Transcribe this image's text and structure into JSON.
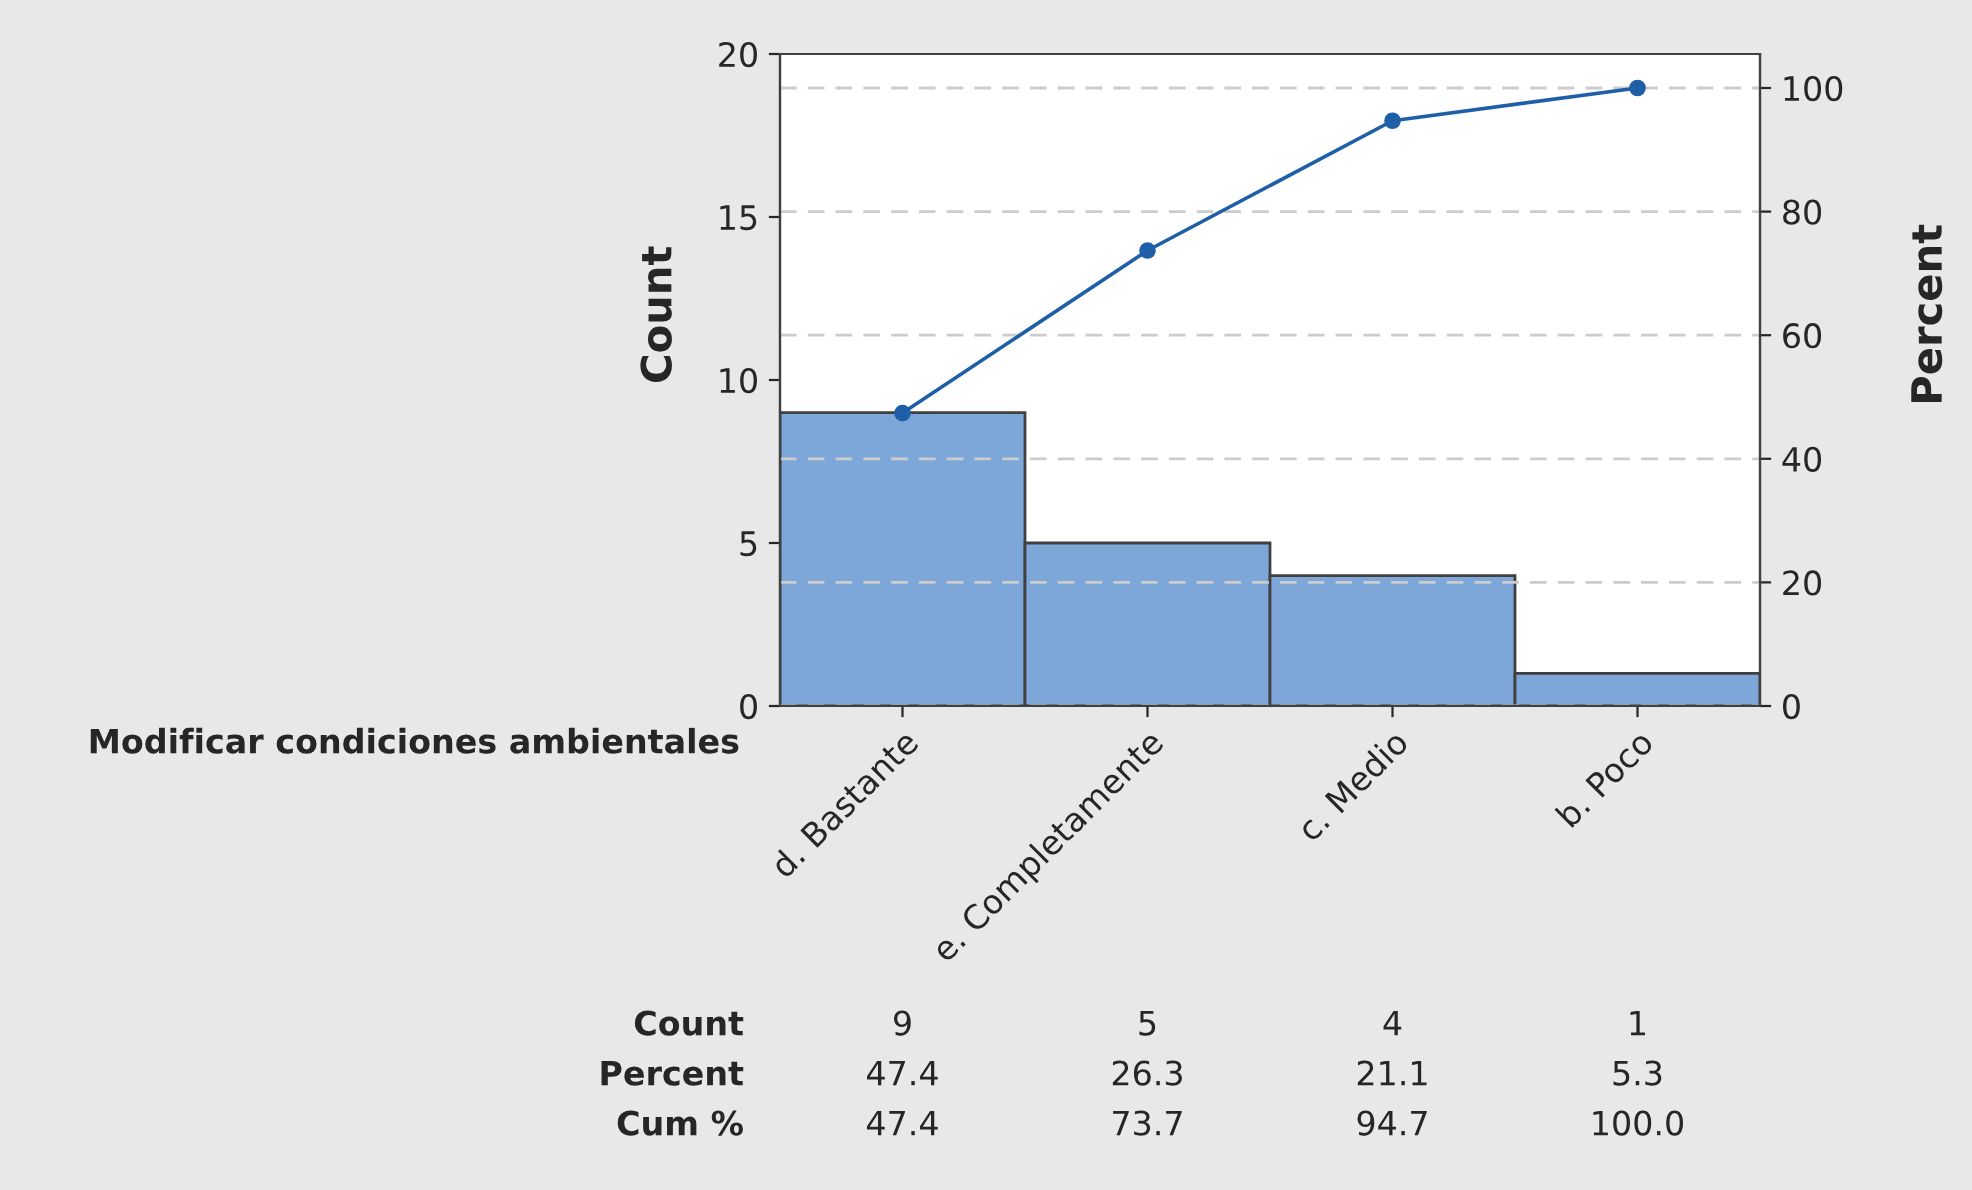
{
  "chart_data": {
    "type": "bar",
    "xlabel": "Modificar condiciones ambientales",
    "ylabel": "Count",
    "y2label": "Percent",
    "categories": [
      "d. Bastante",
      "e. Completamente",
      "c. Medio",
      "b. Poco"
    ],
    "series": [
      {
        "color": "#7da6d9",
        "values": [
          9,
          5,
          4,
          1
        ],
        "value_labels": [
          "9",
          "5",
          "4",
          "1"
        ]
      },
      {
        "type": "line",
        "axis": "y2",
        "color": "#1f5fa8",
        "marker": "circle",
        "values": [
          47.4,
          73.7,
          94.7,
          100
        ],
        "value_labels": [
          "47.4",
          "73.7",
          "94.7",
          "100.0"
        ]
      }
    ],
    "ylim": [
      0,
      20
    ],
    "yticks": [
      0,
      5,
      10,
      15,
      20
    ],
    "y2lim": [
      0,
      105.5
    ],
    "y2ticks": [
      0,
      20,
      40,
      60,
      80,
      100
    ],
    "grid": "y2",
    "annotations": [
      "Count",
      "Percent",
      "Cum %",
      "47.4",
      "26.3",
      "21.1",
      "5.3"
    ]
  }
}
